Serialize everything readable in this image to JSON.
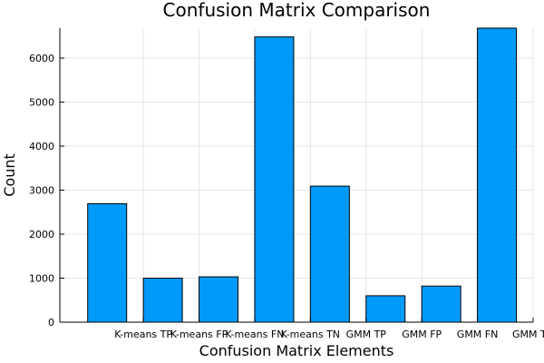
{
  "chart_data": {
    "type": "bar",
    "title": "Confusion Matrix Comparison",
    "xlabel": "Confusion Matrix Elements",
    "ylabel": "Count",
    "categories": [
      "K-means TP",
      "K-means FP",
      "K-means FN",
      "K-means TN",
      "GMM TP",
      "GMM FP",
      "GMM FN",
      "GMM TN"
    ],
    "values": [
      2690,
      1000,
      1030,
      6480,
      3090,
      600,
      820,
      6680
    ],
    "ylim": [
      0,
      6680
    ],
    "yticks": [
      0,
      1000,
      2000,
      3000,
      4000,
      5000,
      6000
    ],
    "grid": true,
    "legend": "none",
    "bar_color": "#009af9"
  }
}
